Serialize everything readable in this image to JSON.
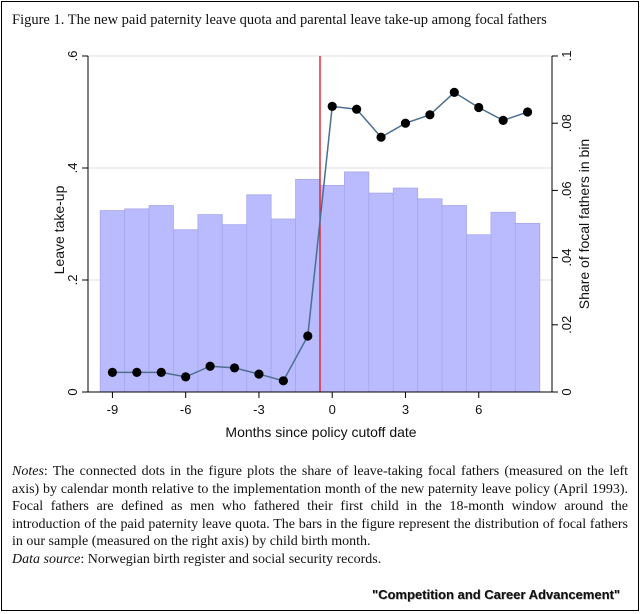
{
  "figure": {
    "title": "Figure 1. The new paid paternity leave quota and parental leave take-up among focal fathers"
  },
  "notes": {
    "label": "Notes",
    "text": ": The connected dots in the figure plots the share of leave-taking focal fathers (measured on the left axis) by calendar month relative to the implementation month of the new paternity leave policy (April 1993). Focal fathers are defined as men who fathered their first child in the 18-month window around the introduction of the paid paternity leave quota. The bars in the figure represent the distribution of focal fathers in our sample (measured on the right axis) by child birth month.",
    "source_label": "Data source",
    "source_text": ": Norwegian birth register and social security records."
  },
  "credit": "\"Competition and Career Advancement\"",
  "chart_data": {
    "type": "bar+line",
    "xlabel": "Months since policy cutoff date",
    "ylabel_left": "Leave take-up",
    "ylabel_right": "Share of focal fathers in bin",
    "xlim": [
      -10,
      9
    ],
    "ylim_left": [
      0,
      0.6
    ],
    "ylim_right": [
      0,
      0.1
    ],
    "x_ticks": [
      -9,
      -6,
      -3,
      0,
      3,
      6
    ],
    "x_tick_labels": [
      "-9",
      "-6",
      "-3",
      "0",
      "3",
      "6"
    ],
    "y_left_ticks": [
      0,
      0.2,
      0.4,
      0.6
    ],
    "y_left_tick_labels": [
      "0",
      ".2",
      ".4",
      ".6"
    ],
    "y_right_ticks": [
      0,
      0.02,
      0.04,
      0.06,
      0.08,
      0.1
    ],
    "y_right_tick_labels": [
      "0",
      ".02",
      ".04",
      ".06",
      ".08",
      ".1"
    ],
    "cutoff_x": -0.5,
    "grid": true,
    "bars": {
      "x": [
        -9,
        -8,
        -7,
        -6,
        -5,
        -4,
        -3,
        -2,
        -1,
        0,
        1,
        2,
        3,
        4,
        5,
        6,
        7,
        8
      ],
      "values": [
        0.054,
        0.0545,
        0.0555,
        0.0483,
        0.0528,
        0.0498,
        0.0587,
        0.0515,
        0.0633,
        0.0615,
        0.0655,
        0.0592,
        0.0607,
        0.0575,
        0.0555,
        0.0468,
        0.0535,
        0.0502
      ]
    },
    "line": {
      "x": [
        -9,
        -8,
        -7,
        -6,
        -5,
        -4,
        -3,
        -2,
        -1,
        0,
        1,
        2,
        3,
        4,
        5,
        6,
        7,
        8
      ],
      "values": [
        0.035,
        0.035,
        0.035,
        0.027,
        0.046,
        0.043,
        0.032,
        0.02,
        0.1,
        0.51,
        0.505,
        0.455,
        0.48,
        0.495,
        0.535,
        0.508,
        0.485,
        0.5
      ]
    },
    "colors": {
      "bar_fill": "#babaff",
      "bar_stroke": "#a7a7ee",
      "line": "#4b6f8f",
      "marker": "#000000",
      "cutoff": "#e0202a",
      "grid": "#dcdcdc"
    }
  }
}
